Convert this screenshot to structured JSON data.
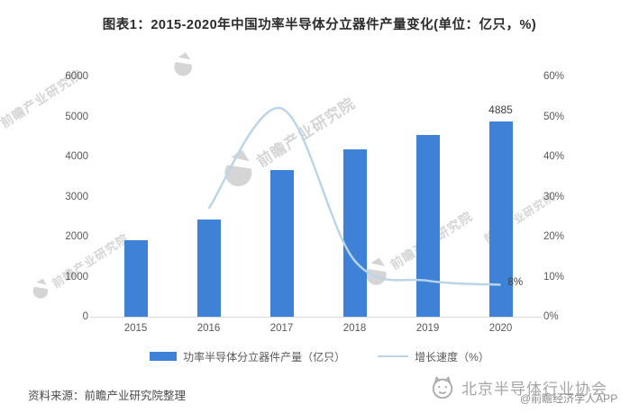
{
  "title": "图表1：2015-2020年中国功率半导体分立器件产量变化(单位：亿只，%)",
  "chart_data": {
    "type": "bar+line",
    "categories": [
      "2015",
      "2016",
      "2017",
      "2018",
      "2019",
      "2020"
    ],
    "series": [
      {
        "name": "功率半导体分立器件产量（亿只）",
        "type": "bar",
        "axis": "left",
        "color": "#3d82d7",
        "values": [
          1900,
          2430,
          3670,
          4170,
          4530,
          4885
        ]
      },
      {
        "name": "增长速度（%）",
        "type": "line",
        "axis": "right",
        "color": "#bad4e9",
        "values": [
          null,
          27,
          52,
          14,
          9,
          8
        ]
      }
    ],
    "left_axis": {
      "min": 0,
      "max": 6000,
      "ticks": [
        "0",
        "1000",
        "2000",
        "3000",
        "4000",
        "5000",
        "6000"
      ]
    },
    "right_axis": {
      "min": 0,
      "max": 60,
      "ticks": [
        "0%",
        "10%",
        "20%",
        "30%",
        "40%",
        "50%",
        "60%"
      ]
    },
    "data_labels": {
      "bar_last": "4885",
      "line_last": "8%"
    },
    "legend_position": "bottom",
    "grid": false
  },
  "watermark": {
    "text": "前瞻产业研究院"
  },
  "source": "资料来源：前瞻产业研究院整理",
  "footer_badge": {
    "org": "北京半导体行业协会",
    "app": "@前瞻经济学人APP"
  },
  "colors": {
    "bar": "#3d82d7",
    "line": "#bad4e9",
    "axis_text": "#595959",
    "label_text": "#404040",
    "axis_line": "#d9d9d9",
    "watermark": "#cdcdcd"
  }
}
